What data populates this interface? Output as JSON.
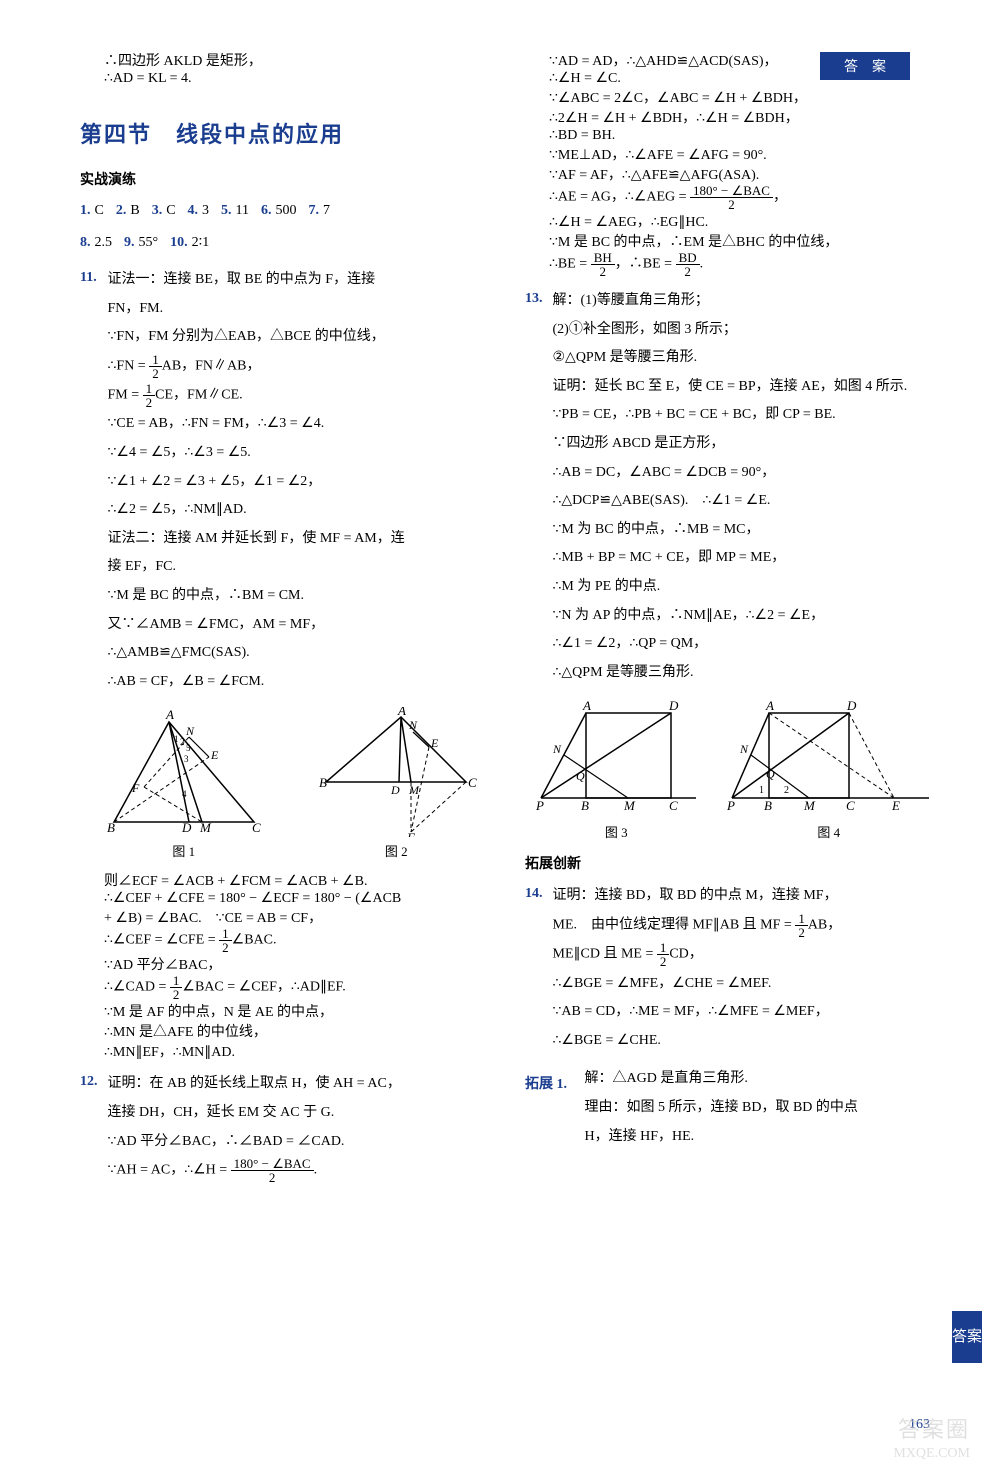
{
  "header": {
    "tab_label": "答　案"
  },
  "left_col": {
    "intro_lines": [
      "∴四边形 AKLD 是矩形，",
      "∴AD = KL = 4."
    ],
    "section_title": "第四节　线段中点的应用",
    "practice_heading": "实战演练",
    "short_answers_row1": [
      {
        "n": "1.",
        "a": "C"
      },
      {
        "n": "2.",
        "a": "B"
      },
      {
        "n": "3.",
        "a": "C"
      },
      {
        "n": "4.",
        "a": "3"
      },
      {
        "n": "5.",
        "a": "11"
      },
      {
        "n": "6.",
        "a": "500"
      },
      {
        "n": "7.",
        "a": "7"
      }
    ],
    "short_answers_row2": [
      {
        "n": "8.",
        "a": "2.5"
      },
      {
        "n": "9.",
        "a": "55°"
      },
      {
        "n": "10.",
        "a": "2∶1"
      }
    ],
    "p11": {
      "num": "11.",
      "lines": [
        "证法一：连接 BE，取 BE 的中点为 F，连接",
        "FN，FM.",
        "∵FN，FM 分别为△EAB，△BCE 的中位线，",
        "∴FN = {FRAC:1:2}AB，FN∥AB，",
        "FM = {FRAC:1:2}CE，FM∥CE.",
        "∵CE = AB，∴FN = FM，∴∠3 = ∠4.",
        "∵∠4 = ∠5，∴∠3 = ∠5.",
        "∵∠1 + ∠2 = ∠3 + ∠5，∠1 = ∠2，",
        "∴∠2 = ∠5，∴NM∥AD.",
        "证法二：连接 AM 并延长到 F，使 MF = AM，连",
        "接 EF，FC.",
        "∵M 是 BC 的中点，∴BM = CM.",
        "又∵∠AMB = ∠FMC，AM = MF，",
        "∴△AMB≌△FMC(SAS).",
        "∴AB = CF，∠B = ∠FCM."
      ]
    },
    "fig1_label": "图 1",
    "fig2_label": "图 2",
    "p11_cont": [
      "则∠ECF = ∠ACB + ∠FCM = ∠ACB + ∠B.",
      "∴∠CEF + ∠CFE = 180° − ∠ECF = 180° − (∠ACB",
      "+ ∠B) = ∠BAC.　∵CE = AB = CF，",
      "∴∠CEF = ∠CFE = {FRAC:1:2}∠BAC.",
      "∵AD 平分∠BAC，",
      "∴∠CAD = {FRAC:1:2}∠BAC = ∠CEF，∴AD∥EF.",
      "∵M 是 AF 的中点，N 是 AE 的中点，",
      "∴MN 是△AFE 的中位线，",
      "∴MN∥EF，∴MN∥AD."
    ],
    "p12": {
      "num": "12.",
      "lines": [
        "证明：在 AB 的延长线上取点 H，使 AH = AC，",
        "连接 DH，CH，延长 EM 交 AC 于 G.",
        "∵AD 平分∠BAC，∴∠BAD = ∠CAD.",
        "∵AH = AC，∴∠H = {FRAC:180° − ∠BAC:2}."
      ]
    }
  },
  "right_col": {
    "p12_cont": [
      "∵AD = AD，∴△AHD≌△ACD(SAS)，",
      "∴∠H = ∠C.",
      "∵∠ABC = 2∠C，∠ABC = ∠H + ∠BDH，",
      "∴2∠H = ∠H + ∠BDH，∴∠H = ∠BDH，",
      "∴BD = BH.",
      "∵ME⊥AD，∴∠AFE = ∠AFG = 90°.",
      "∵AF = AF，∴△AFE≌△AFG(ASA).",
      "∴AE = AG，∴∠AEG = {FRAC:180° − ∠BAC:2}，",
      "∴∠H = ∠AEG，∴EG∥HC.",
      "∵M 是 BC 的中点，∴EM 是△BHC 的中位线，",
      "∴BE = {FRAC:BH:2}，∴BE = {FRAC:BD:2}."
    ],
    "p13": {
      "num": "13.",
      "lines": [
        "解：(1)等腰直角三角形；",
        "(2)①补全图形，如图 3 所示；",
        "②△QPM 是等腰三角形.",
        "证明：延长 BC 至 E，使 CE = BP，连接 AE，如图 4 所示.",
        "∵PB = CE，∴PB + BC = CE + BC，即 CP = BE.",
        "∵四边形 ABCD 是正方形，",
        "∴AB = DC，∠ABC = ∠DCB = 90°，",
        "∴△DCP≌△ABE(SAS).　∴∠1 = ∠E.",
        "∵M 为 BC 的中点，∴MB = MC，",
        "∴MB + BP = MC + CE，即 MP = ME，",
        "∴M 为 PE 的中点.",
        "∵N 为 AP 的中点，∴NM∥AE，∴∠2 = ∠E，",
        "∴∠1 = ∠2，∴QP = QM，",
        "∴△QPM 是等腰三角形."
      ]
    },
    "fig3_label": "图 3",
    "fig4_label": "图 4",
    "ext_heading": "拓展创新",
    "p14": {
      "num": "14.",
      "lines": [
        "证明：连接 BD，取 BD 的中点 M，连接 MF，",
        "ME.　由中位线定理得 MF∥AB 且 MF = {FRAC:1:2}AB，",
        "ME∥CD 且 ME = {FRAC:1:2}CD，",
        "∴∠BGE = ∠MFE，∠CHE = ∠MEF.",
        "∵AB = CD，∴ME = MF，∴∠MFE = ∠MEF，",
        "∴∠BGE = ∠CHE."
      ]
    },
    "ext1": {
      "num": "拓展 1.",
      "lines": [
        "解：△AGD 是直角三角形.",
        "理由：如图 5 所示，连接 BD，取 BD 的中点",
        "H，连接 HF，HE."
      ]
    }
  },
  "side_tab": "答案",
  "page_num": "163",
  "watermark": {
    "wm1": "答案圈",
    "wm2": "MXQE.COM"
  },
  "colors": {
    "accent": "#1a3d8f",
    "text": "#000000",
    "bg": "#ffffff"
  }
}
